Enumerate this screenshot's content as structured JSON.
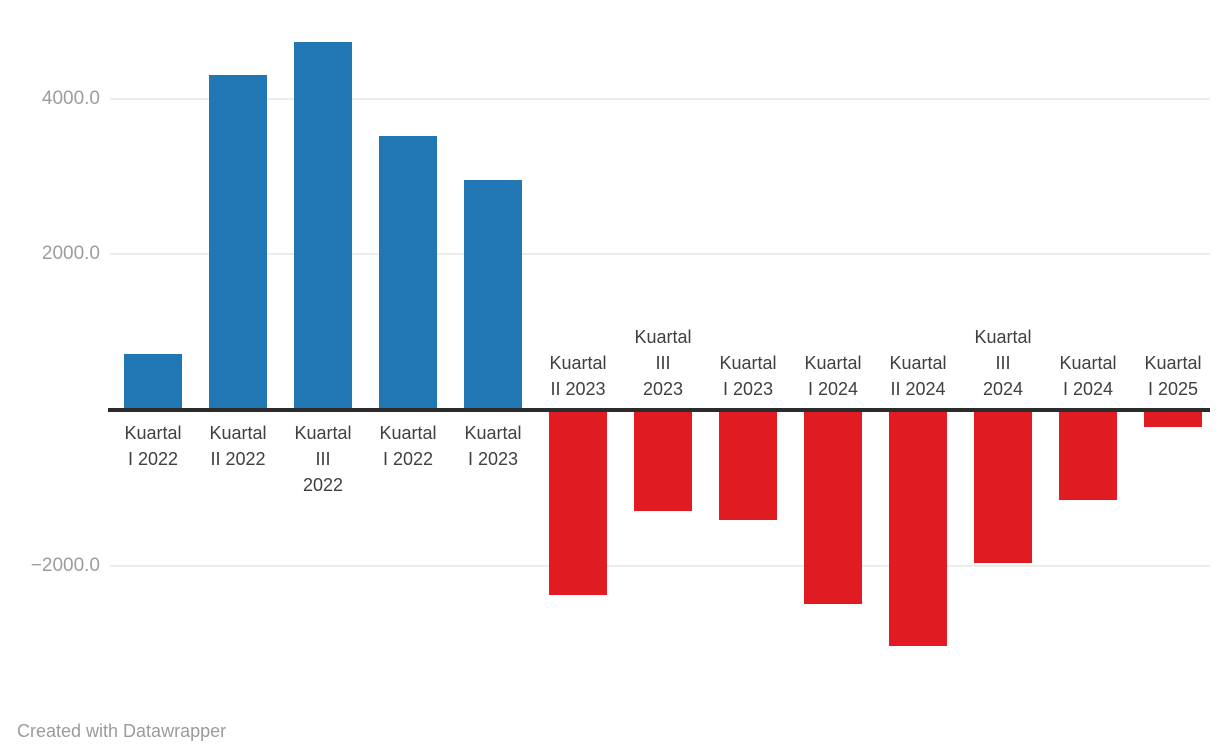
{
  "footer": {
    "credit": "Created with Datawrapper"
  },
  "chart_data": {
    "type": "bar",
    "title": "",
    "xlabel": "",
    "ylabel": "",
    "legend": "none",
    "grid": true,
    "ylim": [
      -3100,
      4800
    ],
    "categories": [
      "Kuartal I 2022",
      "Kuartal II 2022",
      "Kuartal III 2022",
      "Kuartal I 2022",
      "Kuartal I 2023",
      "Kuartal II 2023",
      "Kuartal III 2023",
      "Kuartal I 2023",
      "Kuartal I 2024",
      "Kuartal II 2024",
      "Kuartal III 2024",
      "Kuartal I 2024",
      "Kuartal I 2025"
    ],
    "label_lines": [
      [
        "Kuartal",
        "I 2022"
      ],
      [
        "Kuartal",
        "II 2022"
      ],
      [
        "Kuartal",
        "III",
        "2022"
      ],
      [
        "Kuartal",
        "I 2022"
      ],
      [
        "Kuartal",
        "I 2023"
      ],
      [
        "Kuartal",
        "II 2023"
      ],
      [
        "Kuartal",
        "III",
        "2023"
      ],
      [
        "Kuartal",
        "I 2023"
      ],
      [
        "Kuartal",
        "I 2024"
      ],
      [
        "Kuartal",
        "II 2024"
      ],
      [
        "Kuartal",
        "III",
        "2024"
      ],
      [
        "Kuartal",
        "I 2024"
      ],
      [
        "Kuartal",
        "I 2025"
      ]
    ],
    "values": [
      700,
      4280,
      4700,
      3500,
      2930,
      -2350,
      -1270,
      -1390,
      -2470,
      -3010,
      -1940,
      -1130,
      -190
    ],
    "y_ticks": [
      {
        "label": "4000.0",
        "value": 4000
      },
      {
        "label": "2000.0",
        "value": 2000
      },
      {
        "label": "−2000.0",
        "value": -2000
      }
    ],
    "colors": {
      "positive_bar": "#2077b4",
      "negative_bar": "#e11b22",
      "gridline": "#ececec",
      "axis_line": "#2b2b2b",
      "tick_label": "#9d9d9d",
      "bar_label": "#404040",
      "credit": "#9b9b9b"
    }
  }
}
